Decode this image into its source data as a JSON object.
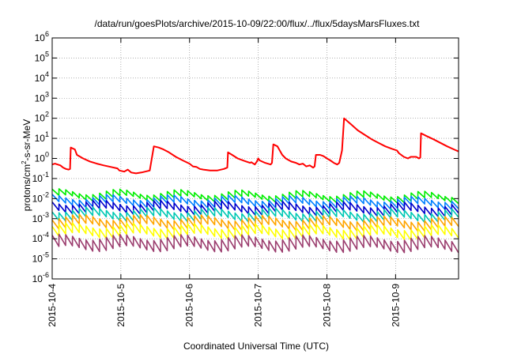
{
  "chart_data": {
    "type": "line",
    "title": "/data/run/goesPlots/archive/2015-10-09/22:00/flux/../flux/5daysMarsFluxes.txt",
    "xlabel": "Coordinated Universal Time (UTC)",
    "ylabel_parts": {
      "pre": "protons/cm",
      "sup": "2",
      "post": "-s-sr-MeV"
    },
    "y_scale": "log",
    "ylim": [
      1e-06,
      1000000.0
    ],
    "y_ticks": [
      {
        "base": "10",
        "exp": "-6"
      },
      {
        "base": "10",
        "exp": "-5"
      },
      {
        "base": "10",
        "exp": "-4"
      },
      {
        "base": "10",
        "exp": "-3"
      },
      {
        "base": "10",
        "exp": "-2"
      },
      {
        "base": "10",
        "exp": "-1"
      },
      {
        "base": "10",
        "exp": "0"
      },
      {
        "base": "10",
        "exp": "1"
      },
      {
        "base": "10",
        "exp": "2"
      },
      {
        "base": "10",
        "exp": "3"
      },
      {
        "base": "10",
        "exp": "4"
      },
      {
        "base": "10",
        "exp": "5"
      },
      {
        "base": "10",
        "exp": "6"
      }
    ],
    "xlim": [
      "2015-10-04",
      "2015-10-09 22:00"
    ],
    "x_ticks": [
      "2015-10-4",
      "2015-10-5",
      "2015-10-6",
      "2015-10-7",
      "2015-10-8",
      "2015-10-9"
    ],
    "grid": true,
    "series": [
      {
        "color": "#ff0000",
        "points": [
          [
            0.0,
            0.5
          ],
          [
            0.04,
            0.55
          ],
          [
            0.08,
            0.5
          ],
          [
            0.12,
            0.45
          ],
          [
            0.16,
            0.35
          ],
          [
            0.2,
            0.3
          ],
          [
            0.24,
            0.28
          ],
          [
            0.26,
            0.3
          ],
          [
            0.27,
            3.5
          ],
          [
            0.33,
            2.8
          ],
          [
            0.36,
            1.5
          ],
          [
            0.45,
            1.0
          ],
          [
            0.55,
            0.7
          ],
          [
            0.65,
            0.55
          ],
          [
            0.75,
            0.45
          ],
          [
            0.85,
            0.38
          ],
          [
            0.95,
            0.32
          ],
          [
            0.98,
            0.25
          ],
          [
            1.05,
            0.22
          ],
          [
            1.1,
            0.28
          ],
          [
            1.15,
            0.2
          ],
          [
            1.22,
            0.18
          ],
          [
            1.3,
            0.2
          ],
          [
            1.42,
            0.25
          ],
          [
            1.48,
            4.0
          ],
          [
            1.55,
            3.5
          ],
          [
            1.62,
            2.8
          ],
          [
            1.7,
            2.0
          ],
          [
            1.8,
            1.2
          ],
          [
            1.9,
            0.8
          ],
          [
            2.0,
            0.55
          ],
          [
            2.05,
            0.4
          ],
          [
            2.1,
            0.38
          ],
          [
            2.15,
            0.3
          ],
          [
            2.2,
            0.28
          ],
          [
            2.3,
            0.25
          ],
          [
            2.4,
            0.25
          ],
          [
            2.5,
            0.3
          ],
          [
            2.55,
            0.35
          ],
          [
            2.56,
            2.0
          ],
          [
            2.62,
            1.5
          ],
          [
            2.7,
            1.0
          ],
          [
            2.8,
            0.75
          ],
          [
            2.88,
            0.6
          ],
          [
            2.9,
            0.65
          ],
          [
            2.95,
            0.5
          ],
          [
            2.98,
            0.7
          ],
          [
            3.0,
            1.0
          ],
          [
            3.02,
            0.8
          ],
          [
            3.1,
            0.6
          ],
          [
            3.18,
            0.5
          ],
          [
            3.2,
            0.6
          ],
          [
            3.22,
            5.0
          ],
          [
            3.28,
            4.0
          ],
          [
            3.35,
            1.5
          ],
          [
            3.4,
            1.0
          ],
          [
            3.48,
            0.7
          ],
          [
            3.55,
            0.6
          ],
          [
            3.6,
            0.5
          ],
          [
            3.65,
            0.55
          ],
          [
            3.7,
            0.4
          ],
          [
            3.75,
            0.45
          ],
          [
            3.8,
            0.35
          ],
          [
            3.82,
            0.4
          ],
          [
            3.84,
            1.5
          ],
          [
            3.9,
            1.5
          ],
          [
            3.95,
            1.3
          ],
          [
            4.0,
            1.0
          ],
          [
            4.05,
            0.8
          ],
          [
            4.1,
            0.6
          ],
          [
            4.15,
            0.5
          ],
          [
            4.18,
            0.6
          ],
          [
            4.22,
            2.5
          ],
          [
            4.25,
            100.0
          ],
          [
            4.35,
            50.0
          ],
          [
            4.45,
            25.0
          ],
          [
            4.55,
            15.0
          ],
          [
            4.65,
            9.0
          ],
          [
            4.75,
            6.0
          ],
          [
            4.85,
            4.0
          ],
          [
            4.95,
            3.0
          ],
          [
            5.02,
            2.5
          ],
          [
            5.05,
            1.8
          ],
          [
            5.12,
            1.2
          ],
          [
            5.18,
            1.0
          ],
          [
            5.22,
            1.2
          ],
          [
            5.3,
            1.2
          ],
          [
            5.34,
            1.0
          ],
          [
            5.36,
            1.1
          ],
          [
            5.37,
            18.0
          ],
          [
            5.45,
            13.0
          ],
          [
            5.55,
            9.0
          ],
          [
            5.65,
            6.0
          ],
          [
            5.75,
            4.0
          ],
          [
            5.85,
            2.8
          ],
          [
            5.92,
            2.2
          ]
        ]
      },
      {
        "color": "#00ee00",
        "start": 0.022,
        "end": 0.016,
        "amp": 2.0
      },
      {
        "color": "#0080ff",
        "start": 0.012,
        "end": 0.009,
        "amp": 2.3
      },
      {
        "color": "#0000cc",
        "start": 0.0065,
        "end": 0.0045,
        "amp": 2.6
      },
      {
        "color": "#00c8b4",
        "start": 0.0028,
        "end": 0.0022,
        "amp": 2.6
      },
      {
        "color": "#ffa500",
        "start": 0.0012,
        "end": 0.0009,
        "amp": 2.8
      },
      {
        "color": "#ffff00",
        "start": 0.00045,
        "end": 0.00035,
        "amp": 3.0
      },
      {
        "color": "#9b3d6e",
        "start": 0.00012,
        "end": 0.0001,
        "amp": 3.6
      }
    ],
    "saw_cycles": 60
  }
}
